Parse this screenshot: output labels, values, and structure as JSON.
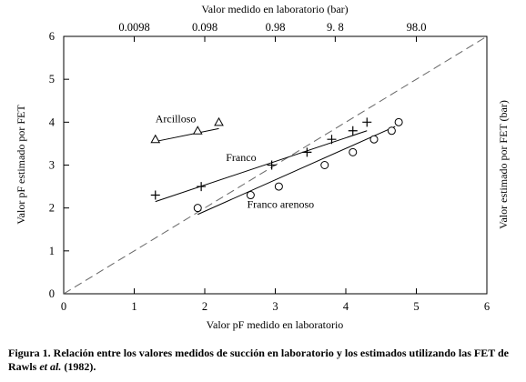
{
  "chart_data": {
    "type": "scatter",
    "xlabel": "Valor pF medido en laboratorio",
    "ylabel": "Valor pF estimado por FET",
    "top_axis_label": "Valor medido en laboratorio (bar)",
    "right_axis_label": "Valor estimado por FET  (bar)",
    "xlim": [
      0,
      6
    ],
    "ylim": [
      0,
      6
    ],
    "x_ticks": [
      "0",
      "1",
      "2",
      "3",
      "4",
      "5",
      "6"
    ],
    "y_ticks": [
      "0",
      "1",
      "2",
      "3",
      "4",
      "5",
      "6"
    ],
    "top_ticks": [
      {
        "x": 1.0,
        "label": "0.0098"
      },
      {
        "x": 2.0,
        "label": "0.098"
      },
      {
        "x": 3.0,
        "label": "0.98"
      },
      {
        "x": 3.85,
        "label": "9.  8"
      },
      {
        "x": 5.0,
        "label": "98.0"
      }
    ],
    "reference_line": {
      "style": "dashed",
      "from": [
        0,
        0
      ],
      "to": [
        6,
        6
      ]
    },
    "series": [
      {
        "name": "Arcilloso",
        "marker": "triangle",
        "points": [
          [
            1.3,
            3.6
          ],
          [
            1.9,
            3.8
          ],
          [
            2.2,
            4.0
          ]
        ],
        "trend": [
          [
            1.3,
            3.55
          ],
          [
            2.2,
            3.85
          ]
        ],
        "label_at": [
          1.3,
          4.0
        ]
      },
      {
        "name": "Franco",
        "marker": "plus",
        "points": [
          [
            1.3,
            2.3
          ],
          [
            1.95,
            2.5
          ],
          [
            2.95,
            3.0
          ],
          [
            3.45,
            3.3
          ],
          [
            3.8,
            3.6
          ],
          [
            4.1,
            3.8
          ],
          [
            4.3,
            4.0
          ]
        ],
        "trend": [
          [
            1.3,
            2.15
          ],
          [
            4.3,
            3.8
          ]
        ],
        "label_at": [
          2.3,
          3.1
        ]
      },
      {
        "name": "Franco arenoso",
        "marker": "circle",
        "points": [
          [
            1.9,
            2.0
          ],
          [
            2.65,
            2.3
          ],
          [
            3.05,
            2.5
          ],
          [
            3.7,
            3.0
          ],
          [
            4.1,
            3.3
          ],
          [
            4.4,
            3.6
          ],
          [
            4.65,
            3.8
          ],
          [
            4.75,
            4.0
          ]
        ],
        "trend": [
          [
            1.9,
            1.85
          ],
          [
            4.7,
            3.9
          ]
        ],
        "label_at": [
          2.6,
          2.0
        ]
      }
    ]
  },
  "caption": {
    "prefix": "Figura 1. Relación entre los valores medidos de succión en laboratorio y los estimados utilizando las FET de Rawls ",
    "italic": "et al.",
    "suffix": " (1982)."
  }
}
